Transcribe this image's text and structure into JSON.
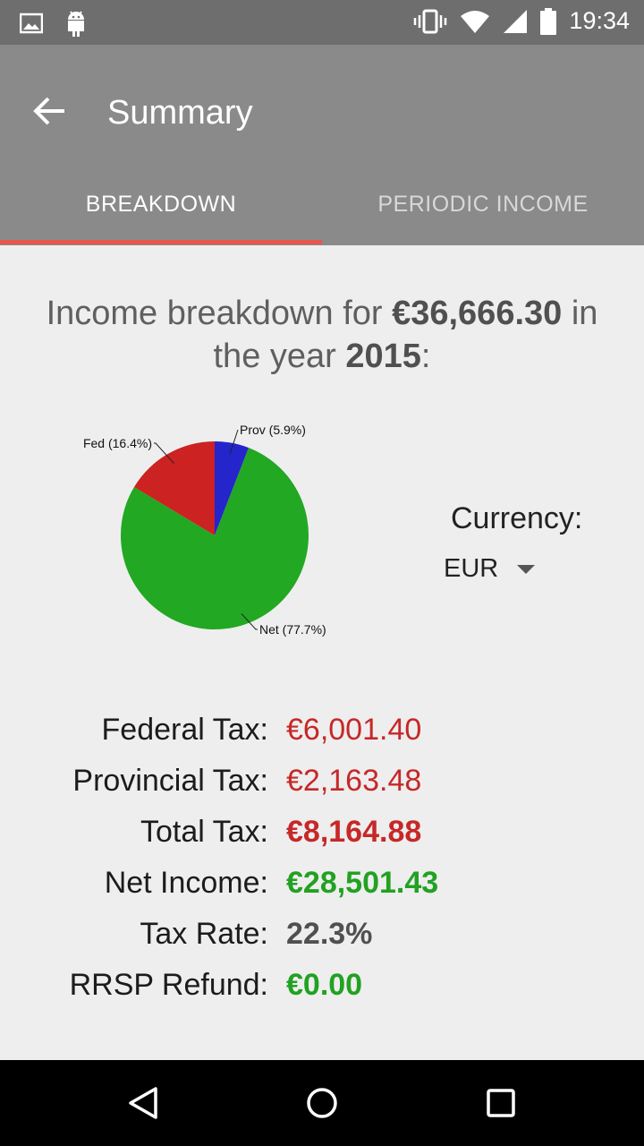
{
  "status_bar": {
    "time": "19:34"
  },
  "app_bar": {
    "title": "Summary"
  },
  "tabs": [
    {
      "label": "BREAKDOWN",
      "selected": true
    },
    {
      "label": "PERIODIC INCOME",
      "selected": false
    }
  ],
  "heading": {
    "prefix": "Income breakdown for ",
    "amount": "€36,666.30",
    "middle": " in the year ",
    "year": "2015",
    "suffix": ":"
  },
  "chart_data": {
    "type": "pie",
    "slices": [
      {
        "label": "Prov (5.9%)",
        "value": 5.9,
        "color": "#2525cc"
      },
      {
        "label": "Net (77.7%)",
        "value": 77.7,
        "color": "#22a822"
      },
      {
        "label": "Fed (16.4%)",
        "value": 16.4,
        "color": "#cc2222"
      }
    ]
  },
  "currency": {
    "label": "Currency:",
    "value": "EUR"
  },
  "summary_rows": [
    {
      "label": "Federal Tax:",
      "value": "€6,001.40",
      "color": "red",
      "bold": false
    },
    {
      "label": "Provincial Tax:",
      "value": "€2,163.48",
      "color": "red",
      "bold": false
    },
    {
      "label": "Total Tax:",
      "value": "€8,164.88",
      "color": "red",
      "bold": true
    },
    {
      "label": "Net Income:",
      "value": "€28,501.43",
      "color": "green",
      "bold": true
    },
    {
      "label": "Tax Rate:",
      "value": "22.3%",
      "color": "gray",
      "bold": true
    },
    {
      "label": "RRSP Refund:",
      "value": "€0.00",
      "color": "green",
      "bold": true
    }
  ],
  "icons": {
    "status_left": [
      "image-icon",
      "android-icon"
    ],
    "status_right": [
      "vibrate-icon",
      "wifi-icon",
      "signal-icon",
      "battery-icon"
    ],
    "nav": [
      "back-triangle-icon",
      "home-circle-icon",
      "recents-square-icon"
    ]
  }
}
